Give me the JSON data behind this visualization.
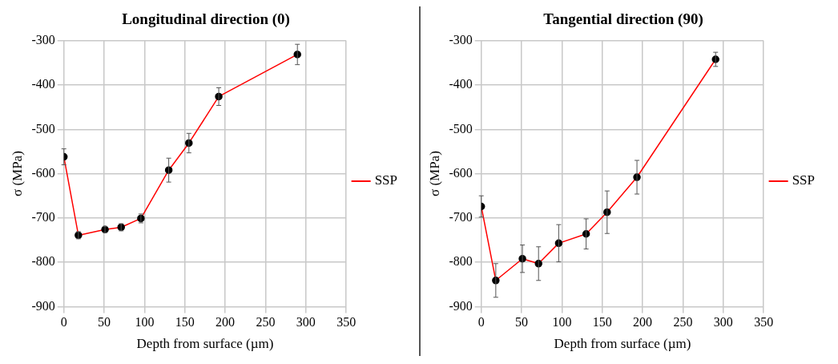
{
  "chart_data": [
    {
      "type": "line",
      "title": "Longitudinal direction (0)",
      "xlabel": "Depth from surface (µm)",
      "ylabel": "σ (MPa)",
      "series": [
        {
          "name": "SSP",
          "color": "#ff0000",
          "x": [
            0,
            18,
            51,
            71,
            95.5,
            130,
            155,
            192,
            289.5
          ],
          "values": [
            -562,
            -739,
            -726,
            -721,
            -701,
            -592,
            -531,
            -426,
            -331
          ],
          "errors": [
            18,
            8,
            7,
            8,
            10,
            27,
            22,
            20,
            23
          ]
        }
      ],
      "xlim": [
        0,
        350
      ],
      "xticks": [
        0,
        50,
        100,
        150,
        200,
        250,
        300,
        350
      ],
      "ylim": [
        -900,
        -300
      ],
      "yticks": [
        -900,
        -800,
        -700,
        -600,
        -500,
        -400,
        -300
      ],
      "grid": true,
      "legend": "right",
      "marker": "circle"
    },
    {
      "type": "line",
      "title": "Tangential direction (90)",
      "xlabel": "Depth from surface (µm)",
      "ylabel": "σ (MPa)",
      "series": [
        {
          "name": "SSP",
          "color": "#ff0000",
          "x": [
            0,
            18,
            51,
            71,
            96,
            130,
            156,
            193,
            290.5
          ],
          "values": [
            -674,
            -841,
            -792,
            -803,
            -757,
            -736,
            -687,
            -608,
            -342
          ],
          "errors": [
            24,
            38,
            31,
            38,
            42,
            34,
            48,
            38,
            16
          ]
        }
      ],
      "xlim": [
        0,
        350
      ],
      "xticks": [
        0,
        50,
        100,
        150,
        200,
        250,
        300,
        350
      ],
      "ylim": [
        -900,
        -300
      ],
      "yticks": [
        -900,
        -800,
        -700,
        -600,
        -500,
        -400,
        -300
      ],
      "grid": true,
      "legend": "right",
      "marker": "circle"
    }
  ]
}
